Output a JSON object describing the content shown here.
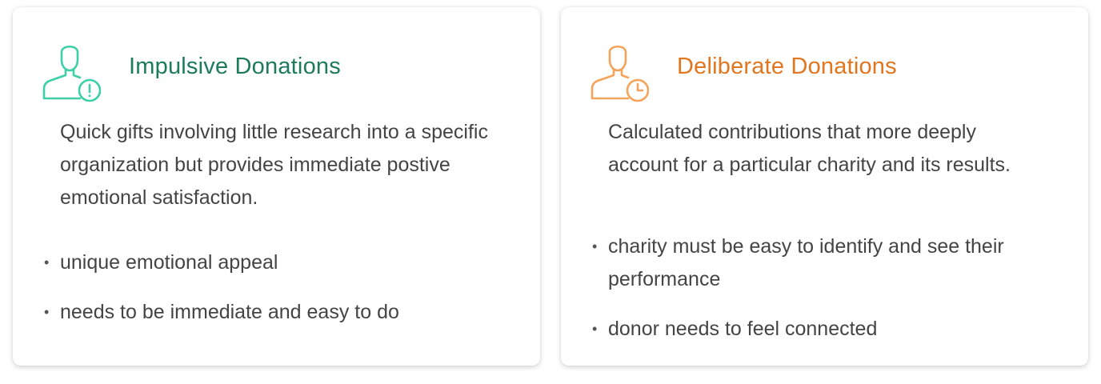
{
  "cards": [
    {
      "title": "Impulsive Donations",
      "icon": "person-alert-icon",
      "accent": "#3dcfa8",
      "title_color": "#1d7a5c",
      "description": "Quick gifts involving little research into a specific organization but provides immediate postive emotional satisfaction.",
      "bullets": [
        "unique emotional appeal",
        "needs to be immediate and easy to do"
      ]
    },
    {
      "title": "Deliberate Donations",
      "icon": "person-clock-icon",
      "accent": "#f4a35a",
      "title_color": "#e2761f",
      "description": "Calculated contributions that more deeply account for a particular charity and its results.",
      "bullets": [
        "charity must be easy to identify and see their performance",
        "donor needs to feel connected"
      ]
    }
  ]
}
